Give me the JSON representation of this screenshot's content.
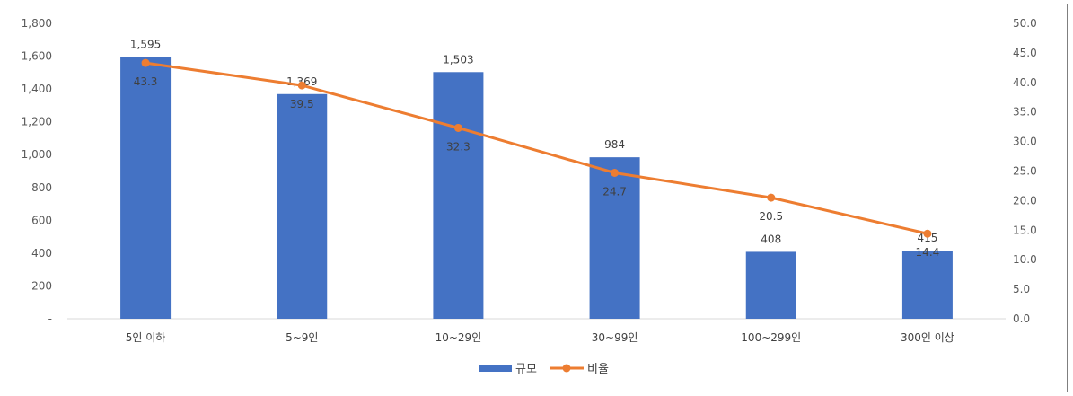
{
  "chart_data": {
    "type": "bar+line",
    "categories": [
      "5인 이하",
      "5~9인",
      "10~29인",
      "30~99인",
      "100~299인",
      "300인 이상"
    ],
    "series": [
      {
        "name": "규모",
        "type": "bar",
        "axis": "left",
        "color": "#4472c4",
        "values": [
          1595,
          1369,
          1503,
          984,
          408,
          415
        ],
        "labels": [
          "1,595",
          "1,369",
          "1,503",
          "984",
          "408",
          "415"
        ]
      },
      {
        "name": "비율",
        "type": "line",
        "axis": "right",
        "color": "#ed7d31",
        "values": [
          43.3,
          39.5,
          32.3,
          24.7,
          20.5,
          14.4
        ],
        "labels": [
          "43.3",
          "39.5",
          "32.3",
          "24.7",
          "20.5",
          "14.4"
        ]
      }
    ],
    "left_axis": {
      "ylim": [
        0,
        1800
      ],
      "ticks": [
        0,
        200,
        400,
        600,
        800,
        1000,
        1200,
        1400,
        1600,
        1800
      ],
      "tick_labels": [
        "-",
        "200",
        "400",
        "600",
        "800",
        "1,000",
        "1,200",
        "1,400",
        "1,600",
        "1,800"
      ]
    },
    "right_axis": {
      "ylim": [
        0,
        50
      ],
      "ticks": [
        0,
        5,
        10,
        15,
        20,
        25,
        30,
        35,
        40,
        45,
        50
      ],
      "tick_labels": [
        "0.0",
        "5.0",
        "10.0",
        "15.0",
        "20.0",
        "25.0",
        "30.0",
        "35.0",
        "40.0",
        "45.0",
        "50.0"
      ]
    },
    "grid": false,
    "legend": {
      "position": "bottom",
      "entries": [
        "규모",
        "비율"
      ]
    }
  }
}
